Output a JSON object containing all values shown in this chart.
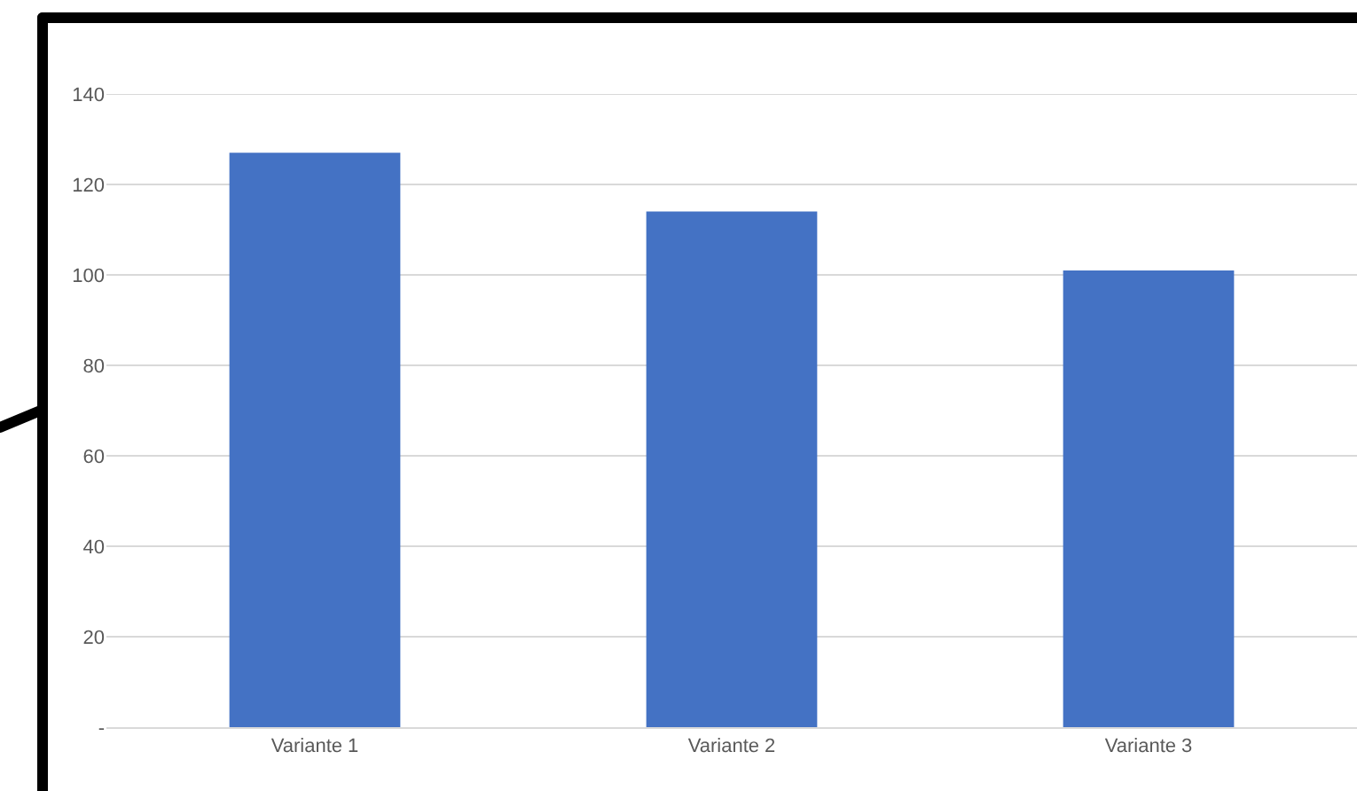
{
  "chart_data": {
    "type": "bar",
    "categories": [
      "Variante 1",
      "Variante 2",
      "Variante 3"
    ],
    "values": [
      127,
      114,
      101
    ],
    "color": "#4472c4",
    "ylim": [
      0,
      140
    ],
    "yticks": [
      {
        "value": 0,
        "label": "-"
      },
      20,
      40,
      60,
      80,
      100,
      120,
      140
    ],
    "grid": "y",
    "legend": false
  }
}
